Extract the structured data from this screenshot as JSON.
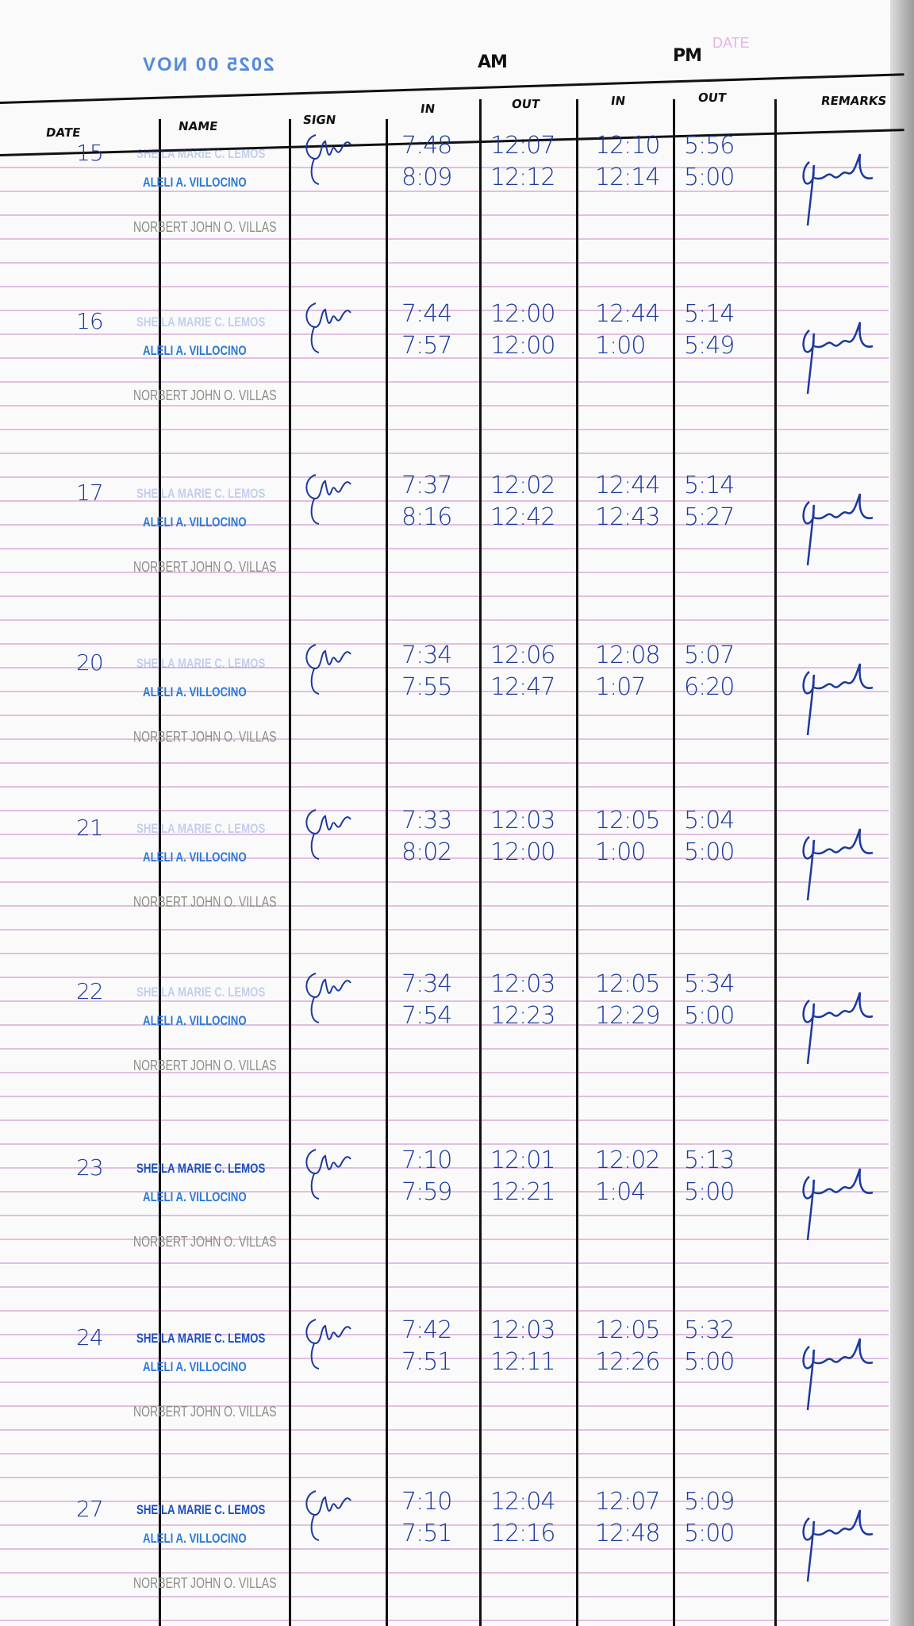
{
  "page": {
    "printed_date_label": "DATE",
    "stamp_text": "2025 00 NOV",
    "period_labels": {
      "am": "AM",
      "pm": "PM"
    },
    "columns": [
      "DATE",
      "NAME",
      "SIGN",
      "IN",
      "OUT",
      "IN",
      "OUT",
      "REMARKS"
    ],
    "ink_color": "#1c3a9c",
    "stamp_color": "#2b7ad6",
    "rule_color": "#e2bfe0"
  },
  "names": [
    "SHEILA MARIE C. LEMOS",
    "ALELI A. VILLOCINO",
    "NORBERT JOHN O. VILLAS"
  ],
  "entries": [
    {
      "date": "15",
      "rows": [
        [
          "7:48",
          "12:07",
          "12:10",
          "5:56"
        ],
        [
          "8:09",
          "12:12",
          "12:14",
          "5:00"
        ]
      ],
      "sheila_faded": true
    },
    {
      "date": "16",
      "rows": [
        [
          "7:44",
          "12:00",
          "12:44",
          "5:14"
        ],
        [
          "7:57",
          "12:00",
          "1:00",
          "5:49"
        ]
      ],
      "sheila_faded": true
    },
    {
      "date": "17",
      "rows": [
        [
          "7:37",
          "12:02",
          "12:44",
          "5:14"
        ],
        [
          "8:16",
          "12:42",
          "12:43",
          "5:27"
        ]
      ],
      "sheila_faded": true
    },
    {
      "date": "20",
      "rows": [
        [
          "7:34",
          "12:06",
          "12:08",
          "5:07"
        ],
        [
          "7:55",
          "12:47",
          "1:07",
          "6:20"
        ]
      ],
      "sheila_faded": true
    },
    {
      "date": "21",
      "rows": [
        [
          "7:33",
          "12:03",
          "12:05",
          "5:04"
        ],
        [
          "8:02",
          "12:00",
          "1:00",
          "5:00"
        ]
      ],
      "sheila_faded": true
    },
    {
      "date": "22",
      "rows": [
        [
          "7:34",
          "12:03",
          "12:05",
          "5:34"
        ],
        [
          "7:54",
          "12:23",
          "12:29",
          "5:00"
        ]
      ],
      "sheila_faded": true
    },
    {
      "date": "23",
      "rows": [
        [
          "7:10",
          "12:01",
          "12:02",
          "5:13"
        ],
        [
          "7:59",
          "12:21",
          "1:04",
          "5:00"
        ]
      ],
      "sheila_faded": false
    },
    {
      "date": "24",
      "rows": [
        [
          "7:42",
          "12:03",
          "12:05",
          "5:32"
        ],
        [
          "7:51",
          "12:11",
          "12:26",
          "5:00"
        ]
      ],
      "sheila_faded": false
    },
    {
      "date": "27",
      "rows": [
        [
          "7:10",
          "12:04",
          "12:07",
          "5:09"
        ],
        [
          "7:51",
          "12:16",
          "12:48",
          "5:00"
        ]
      ],
      "sheila_faded": false
    }
  ]
}
